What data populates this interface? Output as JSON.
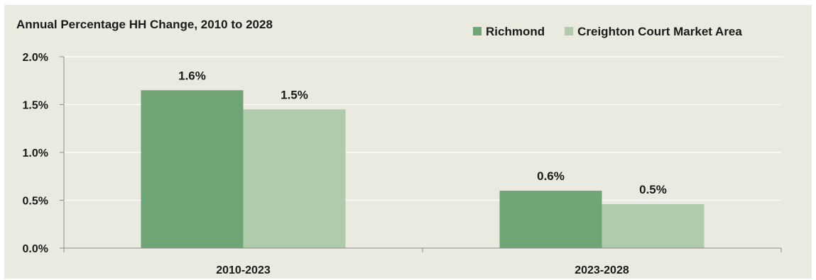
{
  "colors": {
    "background": "#ebeae0",
    "gridline": "#ffffff",
    "axis": "#8c8c8c",
    "richmond": "#6fa477",
    "market_area": "#afcbac"
  },
  "chart_data": {
    "type": "bar",
    "title": "Annual Percentage HH Change, 2010 to 2028",
    "xlabel": "",
    "ylabel": "",
    "categories": [
      "2010-2023",
      "2023-2028"
    ],
    "series": [
      {
        "name": "Richmond",
        "color": "#6fa477",
        "values": [
          1.65,
          0.6
        ],
        "labels": [
          "1.6%",
          "0.6%"
        ]
      },
      {
        "name": "Creighton Court Market Area",
        "color": "#afcbac",
        "values": [
          1.45,
          0.46
        ],
        "labels": [
          "1.5%",
          "0.5%"
        ]
      }
    ],
    "ylim": [
      0,
      2.0
    ],
    "yticks": [
      0.0,
      0.5,
      1.0,
      1.5,
      2.0
    ],
    "ytick_labels": [
      "0.0%",
      "0.5%",
      "1.0%",
      "1.5%",
      "2.0%"
    ],
    "grid": true,
    "legend_position": "top-right"
  }
}
